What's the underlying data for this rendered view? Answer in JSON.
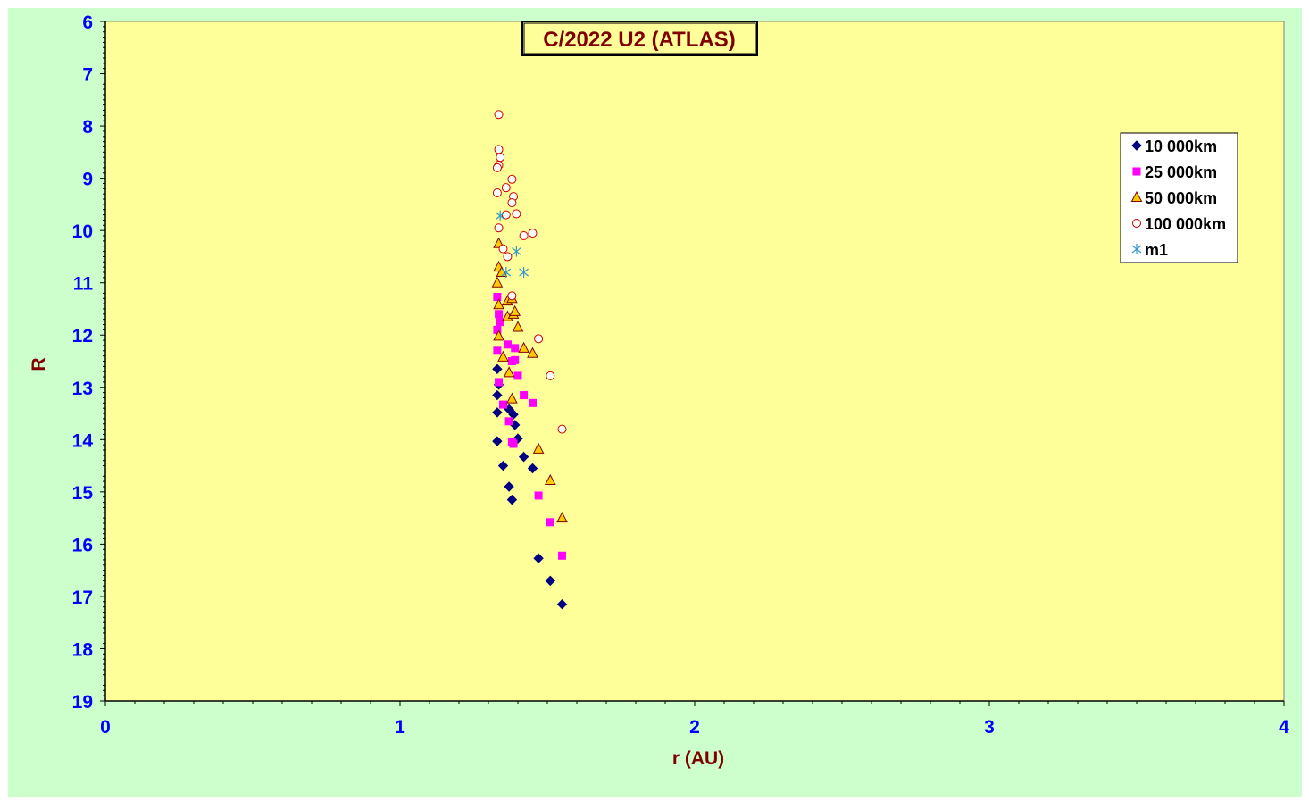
{
  "chart_data": {
    "type": "scatter",
    "title": "C/2022 U2 (ATLAS)",
    "xlabel": "r (AU)",
    "ylabel": "R",
    "xlim": [
      0,
      4
    ],
    "ylim": [
      6,
      19
    ],
    "y_inverted": true,
    "x_ticks": [
      "0",
      "1",
      "2",
      "3",
      "4"
    ],
    "y_ticks": [
      "6",
      "7",
      "8",
      "9",
      "10",
      "11",
      "12",
      "13",
      "14",
      "15",
      "16",
      "17",
      "18",
      "19"
    ],
    "grid": false,
    "legend_position": "top-right",
    "colors": {
      "outer_background": "#ccffcc",
      "plot_background": "#ffff99",
      "tick_label": "#0000ff",
      "axis_title": "#800000",
      "title_text": "#800000"
    },
    "series": [
      {
        "name": "10 000km",
        "marker": "diamond",
        "color": "#000080",
        "points": [
          [
            1.33,
            12.65
          ],
          [
            1.335,
            12.95
          ],
          [
            1.33,
            13.15
          ],
          [
            1.33,
            13.48
          ],
          [
            1.33,
            14.03
          ],
          [
            1.35,
            14.5
          ],
          [
            1.37,
            14.9
          ],
          [
            1.38,
            15.15
          ],
          [
            1.37,
            13.42
          ],
          [
            1.385,
            13.52
          ],
          [
            1.39,
            13.72
          ],
          [
            1.4,
            13.98
          ],
          [
            1.42,
            14.33
          ],
          [
            1.45,
            14.55
          ],
          [
            1.47,
            16.27
          ],
          [
            1.51,
            16.7
          ],
          [
            1.55,
            17.15
          ]
        ]
      },
      {
        "name": "25 000km",
        "marker": "square",
        "color": "#ff00ff",
        "points": [
          [
            1.33,
            11.27
          ],
          [
            1.335,
            11.6
          ],
          [
            1.33,
            11.9
          ],
          [
            1.33,
            12.3
          ],
          [
            1.335,
            12.9
          ],
          [
            1.35,
            13.33
          ],
          [
            1.37,
            13.65
          ],
          [
            1.38,
            14.05
          ],
          [
            1.385,
            14.08
          ],
          [
            1.34,
            11.75
          ],
          [
            1.365,
            12.18
          ],
          [
            1.38,
            12.5
          ],
          [
            1.39,
            12.25
          ],
          [
            1.39,
            12.48
          ],
          [
            1.4,
            12.78
          ],
          [
            1.42,
            13.15
          ],
          [
            1.45,
            13.3
          ],
          [
            1.47,
            15.07
          ],
          [
            1.51,
            15.58
          ],
          [
            1.55,
            16.22
          ]
        ]
      },
      {
        "name": "50 000km",
        "marker": "triangle",
        "color": "#ffcc00",
        "stroke": "#800000",
        "points": [
          [
            1.335,
            10.25
          ],
          [
            1.335,
            10.7
          ],
          [
            1.33,
            11.0
          ],
          [
            1.335,
            11.42
          ],
          [
            1.335,
            12.02
          ],
          [
            1.345,
            10.8
          ],
          [
            1.365,
            11.35
          ],
          [
            1.365,
            11.65
          ],
          [
            1.38,
            11.3
          ],
          [
            1.385,
            11.6
          ],
          [
            1.35,
            12.42
          ],
          [
            1.37,
            12.72
          ],
          [
            1.38,
            13.22
          ],
          [
            1.39,
            11.55
          ],
          [
            1.4,
            11.85
          ],
          [
            1.42,
            12.25
          ],
          [
            1.45,
            12.35
          ],
          [
            1.47,
            14.18
          ],
          [
            1.51,
            14.78
          ],
          [
            1.55,
            15.5
          ]
        ]
      },
      {
        "name": "100 000km",
        "marker": "circle",
        "color": "#ffffff",
        "stroke": "#cc0000",
        "points": [
          [
            1.335,
            7.78
          ],
          [
            1.335,
            8.45
          ],
          [
            1.34,
            8.6
          ],
          [
            1.335,
            8.75
          ],
          [
            1.33,
            8.8
          ],
          [
            1.33,
            9.28
          ],
          [
            1.36,
            9.18
          ],
          [
            1.38,
            9.02
          ],
          [
            1.385,
            9.35
          ],
          [
            1.38,
            9.47
          ],
          [
            1.36,
            9.7
          ],
          [
            1.395,
            9.68
          ],
          [
            1.335,
            9.95
          ],
          [
            1.42,
            10.1
          ],
          [
            1.45,
            10.05
          ],
          [
            1.35,
            10.35
          ],
          [
            1.365,
            10.5
          ],
          [
            1.38,
            11.25
          ],
          [
            1.47,
            12.07
          ],
          [
            1.51,
            12.78
          ],
          [
            1.55,
            13.8
          ]
        ]
      },
      {
        "name": "m1",
        "marker": "asterisk",
        "color": "#3399cc",
        "points": [
          [
            1.34,
            9.72
          ],
          [
            1.395,
            10.4
          ],
          [
            1.36,
            10.8
          ],
          [
            1.42,
            10.8
          ]
        ]
      }
    ]
  }
}
